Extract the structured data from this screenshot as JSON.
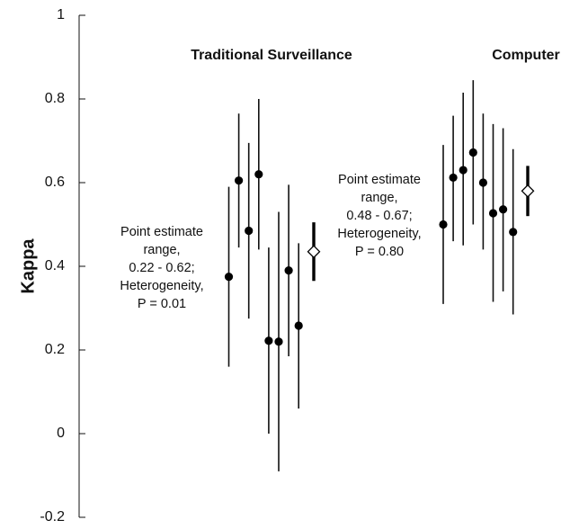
{
  "chart_data": {
    "type": "scatter",
    "title": "",
    "xlabel": "",
    "ylabel": "Kappa",
    "ylim": [
      -0.2,
      1
    ],
    "yticks": [
      "-0.2",
      "0",
      "0.2",
      "0.4",
      "0.6",
      "0.8",
      "1"
    ],
    "grid": false,
    "groups": [
      {
        "name": "Traditional Surveillance",
        "note": [
          "Point estimate",
          "range,",
          "0.22 - 0.62;",
          "Heterogeneity,",
          "P = 0.01"
        ],
        "studies": [
          {
            "estimate": 0.375,
            "lower": 0.16,
            "upper": 0.59
          },
          {
            "estimate": 0.605,
            "lower": 0.445,
            "upper": 0.765
          },
          {
            "estimate": 0.485,
            "lower": 0.275,
            "upper": 0.695
          },
          {
            "estimate": 0.62,
            "lower": 0.44,
            "upper": 0.8
          },
          {
            "estimate": 0.222,
            "lower": 0.0,
            "upper": 0.445
          },
          {
            "estimate": 0.22,
            "lower": -0.09,
            "upper": 0.53
          },
          {
            "estimate": 0.39,
            "lower": 0.185,
            "upper": 0.595
          },
          {
            "estimate": 0.258,
            "lower": 0.06,
            "upper": 0.455
          }
        ],
        "pooled": {
          "estimate": 0.435,
          "lower": 0.365,
          "upper": 0.505
        }
      },
      {
        "name": "Computer",
        "note": [
          "Point estimate",
          "range,",
          "0.48 - 0.67;",
          "Heterogeneity,",
          "P = 0.80"
        ],
        "studies": [
          {
            "estimate": 0.5,
            "lower": 0.31,
            "upper": 0.69
          },
          {
            "estimate": 0.612,
            "lower": 0.46,
            "upper": 0.76
          },
          {
            "estimate": 0.63,
            "lower": 0.45,
            "upper": 0.815
          },
          {
            "estimate": 0.672,
            "lower": 0.5,
            "upper": 0.845
          },
          {
            "estimate": 0.6,
            "lower": 0.44,
            "upper": 0.765
          },
          {
            "estimate": 0.527,
            "lower": 0.315,
            "upper": 0.74
          },
          {
            "estimate": 0.536,
            "lower": 0.34,
            "upper": 0.73
          },
          {
            "estimate": 0.482,
            "lower": 0.285,
            "upper": 0.68
          }
        ],
        "pooled": {
          "estimate": 0.58,
          "lower": 0.52,
          "upper": 0.64
        }
      }
    ]
  }
}
